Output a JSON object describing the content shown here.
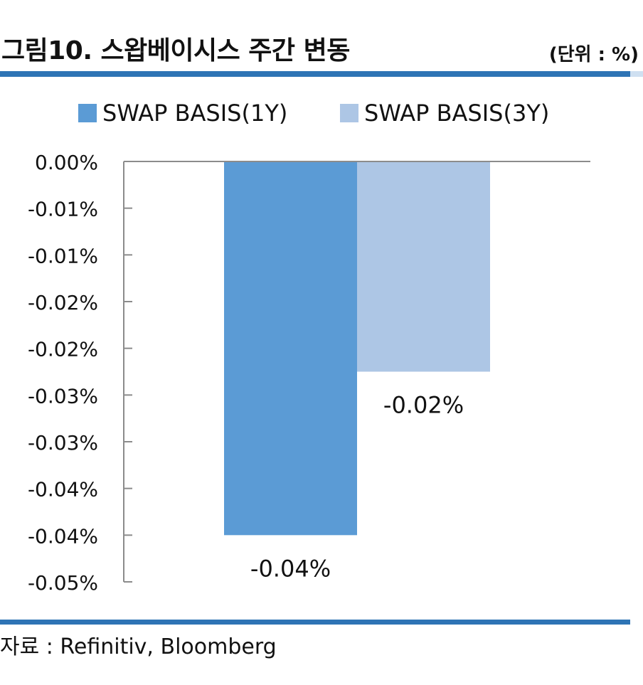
{
  "header": {
    "title": "그림10. 스왑베이시스 주간 변동",
    "unit": "(단위 : %)"
  },
  "footer": {
    "source": "자료 : Refinitiv, Bloomberg"
  },
  "colors": {
    "accent_rule": "#2e74b5",
    "series_1y": "#5b9bd5",
    "series_3y": "#adc6e5",
    "axis": "#8c8c8c"
  },
  "chart_data": {
    "type": "bar",
    "categories": [
      ""
    ],
    "series": [
      {
        "name": "SWAP BASIS(1Y)",
        "values": [
          -0.04
        ],
        "label": "-0.04%"
      },
      {
        "name": "SWAP BASIS(3Y)",
        "values": [
          -0.0225
        ],
        "label": "-0.02%"
      }
    ],
    "ylim": [
      -0.045,
      0.0
    ],
    "ytick_labels": [
      "0.00%",
      "-0.01%",
      "-0.01%",
      "-0.02%",
      "-0.02%",
      "-0.03%",
      "-0.03%",
      "-0.04%",
      "-0.04%",
      "-0.05%"
    ],
    "grid": false,
    "legend_position": "top"
  }
}
